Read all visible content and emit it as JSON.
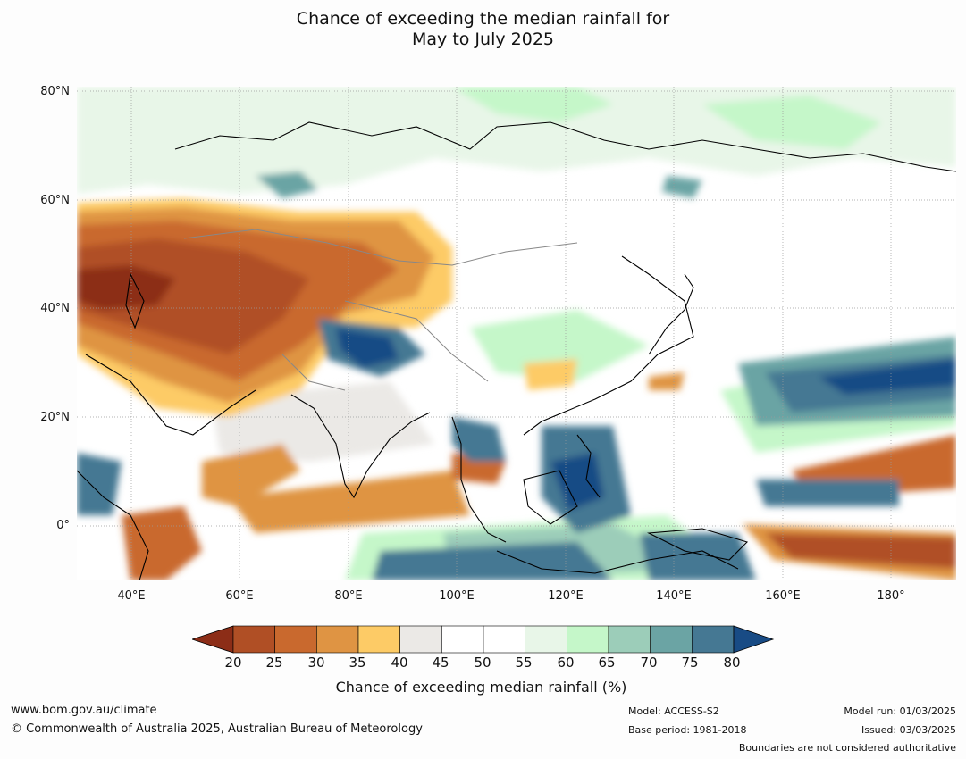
{
  "title": {
    "line1": "Chance of exceeding the median rainfall for",
    "line2": "May to July 2025"
  },
  "map": {
    "latitude_labels": [
      "80°N",
      "60°N",
      "40°N",
      "20°N",
      "0°"
    ],
    "longitude_labels": [
      "40°E",
      "60°E",
      "80°E",
      "100°E",
      "120°E",
      "140°E",
      "160°E",
      "180°"
    ],
    "extent": {
      "lon_min": 30,
      "lon_max": 192,
      "lat_min": -10,
      "lat_max": 81
    },
    "colors": {
      "20": "#8c2d17",
      "25": "#b04f25",
      "30": "#c9692e",
      "35": "#df9443",
      "40": "#fdcb66",
      "45": "#ebe9e6",
      "55": "#ffffff",
      "60": "#e8f6e8",
      "65": "#c5f7c9",
      "70": "#9ccdb9",
      "75": "#6ba4a4",
      "80": "#457893",
      "above80": "#184b85"
    }
  },
  "colorbar": {
    "ticks": [
      "20",
      "25",
      "30",
      "35",
      "40",
      "45",
      "50",
      "55",
      "60",
      "65",
      "70",
      "75",
      "80"
    ],
    "bins": [
      "#b04f25",
      "#c9692e",
      "#df9443",
      "#fdcb66",
      "#ebe9e6",
      "#ffffff",
      "#ffffff",
      "#e8f6e8",
      "#c5f7c9",
      "#9ccdb9",
      "#6ba4a4",
      "#457893"
    ],
    "low_extend": "#8c2d17",
    "high_extend": "#184b85",
    "title": "Chance of exceeding median rainfall (%)"
  },
  "footer": {
    "website": "www.bom.gov.au/climate",
    "copyright": "© Commonwealth of Australia 2025, Australian Bureau of Meteorology",
    "model": "Model: ACCESS-S2",
    "base_period": "Base period: 1981-2018",
    "model_run": "Model run: 01/03/2025",
    "issued": "Issued: 03/03/2025",
    "disclaimer": "Boundaries are not considered authoritative"
  }
}
